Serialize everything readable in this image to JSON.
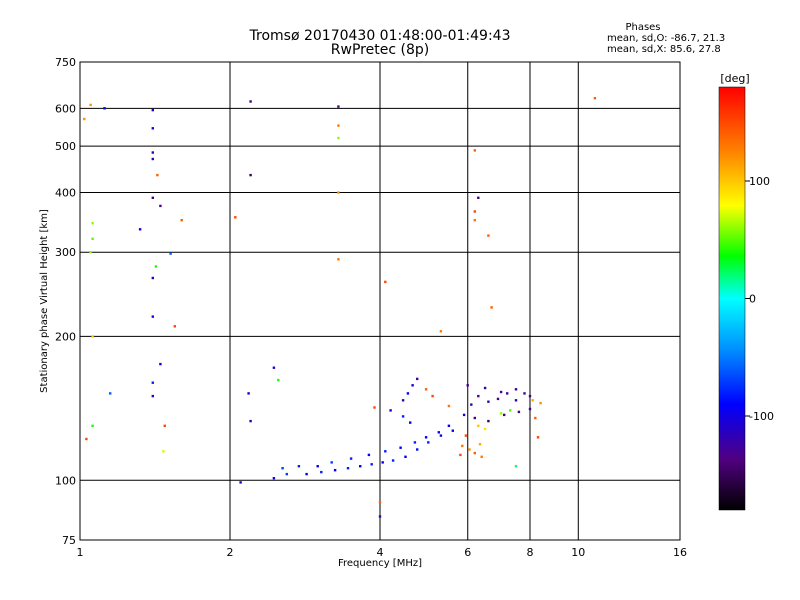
{
  "chart_data": {
    "type": "scatter",
    "title": "Tromsø 20170430 01:48:00-01:49:43",
    "subtitle": "RwPretec (8p)",
    "xlabel": "Frequency [MHz]",
    "ylabel": "Stationary phase Virtual Height [km]",
    "x_scale": "log",
    "y_scale": "log",
    "xlim": [
      1,
      16
    ],
    "ylim": [
      75,
      750
    ],
    "x_ticks": [
      1,
      2,
      4,
      6,
      8,
      10,
      16
    ],
    "y_ticks": [
      75,
      100,
      200,
      300,
      400,
      500,
      600,
      750
    ],
    "grid": true,
    "stats": {
      "title": "Phases",
      "line_o": "mean, sd,O: -86.7, 21.3",
      "line_x": "mean, sd,X:  85.6, 27.8"
    },
    "colorbar": {
      "label": "[deg]",
      "range": [
        -180,
        180
      ],
      "ticks": [
        -100,
        0,
        100
      ]
    },
    "points": [
      [
        1.05,
        610,
        120
      ],
      [
        1.02,
        570,
        120
      ],
      [
        1.12,
        600,
        -90
      ],
      [
        1.4,
        595,
        -100
      ],
      [
        1.4,
        545,
        -110
      ],
      [
        1.4,
        485,
        -120
      ],
      [
        1.4,
        470,
        -120
      ],
      [
        1.43,
        435,
        140
      ],
      [
        1.4,
        390,
        -130
      ],
      [
        1.45,
        375,
        -140
      ],
      [
        1.6,
        350,
        140
      ],
      [
        1.06,
        345,
        60
      ],
      [
        1.06,
        320,
        50
      ],
      [
        1.05,
        300,
        60
      ],
      [
        1.32,
        335,
        -100
      ],
      [
        1.52,
        298,
        -60
      ],
      [
        1.42,
        280,
        40
      ],
      [
        1.4,
        265,
        -110
      ],
      [
        1.4,
        220,
        -100
      ],
      [
        1.55,
        210,
        150
      ],
      [
        1.06,
        200,
        100
      ],
      [
        1.45,
        175,
        -100
      ],
      [
        1.4,
        160,
        -80
      ],
      [
        1.4,
        150,
        -110
      ],
      [
        1.15,
        152,
        -60
      ],
      [
        1.06,
        130,
        40
      ],
      [
        1.48,
        130,
        150
      ],
      [
        1.03,
        122,
        150
      ],
      [
        1.47,
        115,
        70
      ],
      [
        2.05,
        355,
        150
      ],
      [
        2.2,
        620,
        -140
      ],
      [
        2.2,
        435,
        -150
      ],
      [
        2.18,
        152,
        -100
      ],
      [
        2.2,
        133,
        -120
      ],
      [
        2.45,
        172,
        -110
      ],
      [
        2.5,
        162,
        40
      ],
      [
        3.3,
        605,
        -140
      ],
      [
        3.3,
        552,
        130
      ],
      [
        3.3,
        520,
        60
      ],
      [
        3.3,
        400,
        120
      ],
      [
        3.3,
        290,
        130
      ],
      [
        4.1,
        260,
        150
      ],
      [
        5.3,
        205,
        130
      ],
      [
        6.2,
        490,
        140
      ],
      [
        6.3,
        390,
        -140
      ],
      [
        6.2,
        365,
        150
      ],
      [
        6.2,
        350,
        130
      ],
      [
        6.6,
        325,
        140
      ],
      [
        6.7,
        230,
        140
      ],
      [
        10.8,
        630,
        140
      ],
      [
        3.9,
        142,
        150
      ],
      [
        4.0,
        90,
        140
      ],
      [
        4.0,
        84,
        -120
      ],
      [
        2.1,
        99,
        -110
      ],
      [
        2.45,
        101,
        -100
      ],
      [
        2.6,
        103,
        -70
      ],
      [
        2.85,
        103,
        -90
      ],
      [
        3.05,
        104,
        -80
      ],
      [
        3.25,
        105,
        -90
      ],
      [
        3.45,
        106,
        -80
      ],
      [
        3.65,
        107,
        -90
      ],
      [
        3.85,
        108,
        -80
      ],
      [
        4.05,
        109,
        -90
      ],
      [
        4.25,
        110,
        -80
      ],
      [
        4.5,
        112,
        -90
      ],
      [
        4.75,
        116,
        -85
      ],
      [
        5.0,
        120,
        -80
      ],
      [
        5.3,
        124,
        -100
      ],
      [
        5.6,
        127,
        -90
      ],
      [
        2.55,
        106,
        -70
      ],
      [
        2.75,
        107,
        -80
      ],
      [
        3.0,
        107,
        -90
      ],
      [
        3.2,
        109,
        -70
      ],
      [
        3.5,
        111,
        -80
      ],
      [
        3.8,
        113,
        -90
      ],
      [
        4.1,
        115,
        -80
      ],
      [
        4.4,
        117,
        -90
      ],
      [
        4.7,
        120,
        -80
      ],
      [
        4.95,
        123,
        -90
      ],
      [
        5.25,
        126,
        -100
      ],
      [
        5.5,
        130,
        -90
      ],
      [
        4.2,
        140,
        -100
      ],
      [
        4.45,
        147,
        -120
      ],
      [
        4.55,
        152,
        -90
      ],
      [
        4.65,
        158,
        -100
      ],
      [
        4.75,
        163,
        -130
      ],
      [
        4.45,
        136,
        -80
      ],
      [
        4.6,
        132,
        -90
      ],
      [
        5.9,
        137,
        -110
      ],
      [
        6.1,
        144,
        -120
      ],
      [
        6.3,
        150,
        -130
      ],
      [
        6.6,
        146,
        -120
      ],
      [
        6.9,
        148,
        -140
      ],
      [
        7.2,
        152,
        -130
      ],
      [
        7.5,
        147,
        -120
      ],
      [
        7.8,
        152,
        -130
      ],
      [
        8.0,
        150,
        -140
      ],
      [
        6.2,
        135,
        -140
      ],
      [
        6.6,
        133,
        -150
      ],
      [
        7.1,
        137,
        -140
      ],
      [
        7.6,
        139,
        -130
      ],
      [
        8.0,
        141,
        -130
      ],
      [
        6.0,
        158,
        -130
      ],
      [
        6.5,
        156,
        -120
      ],
      [
        7.0,
        153,
        -130
      ],
      [
        7.5,
        155,
        -120
      ],
      [
        8.1,
        147,
        110
      ],
      [
        8.4,
        145,
        120
      ],
      [
        8.2,
        135,
        140
      ],
      [
        8.3,
        123,
        150
      ],
      [
        5.85,
        118,
        130
      ],
      [
        6.05,
        116,
        120
      ],
      [
        6.2,
        114,
        140
      ],
      [
        6.35,
        119,
        110
      ],
      [
        5.95,
        124,
        150
      ],
      [
        5.8,
        113,
        150
      ],
      [
        6.4,
        112,
        130
      ],
      [
        7.0,
        138,
        60
      ],
      [
        7.3,
        140,
        50
      ],
      [
        7.5,
        107,
        20
      ],
      [
        6.3,
        130,
        100
      ],
      [
        6.5,
        128,
        90
      ],
      [
        4.95,
        155,
        140
      ],
      [
        5.1,
        150,
        150
      ],
      [
        5.5,
        143,
        130
      ]
    ]
  }
}
